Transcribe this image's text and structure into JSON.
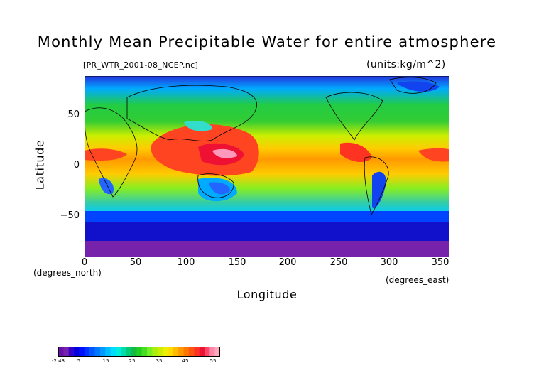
{
  "title": "Monthly Mean Precipitable Water for entire atmosphere",
  "file_label": "[PR_WTR_2001-08_NCEP.nc]",
  "units_label": "(units:kg/m^2)",
  "axes": {
    "ylabel": "Latitude",
    "xlabel": "Longitude",
    "y_unit": "(degrees_north)",
    "x_unit": "(degrees_east)",
    "yticks": [
      "50",
      "0",
      "−50"
    ],
    "xticks": [
      "0",
      "50",
      "100",
      "150",
      "200",
      "250",
      "300",
      "350"
    ]
  },
  "colorbar": {
    "labels": [
      "-2.43",
      "5",
      "15",
      "25",
      "35",
      "45",
      "55"
    ]
  }
}
